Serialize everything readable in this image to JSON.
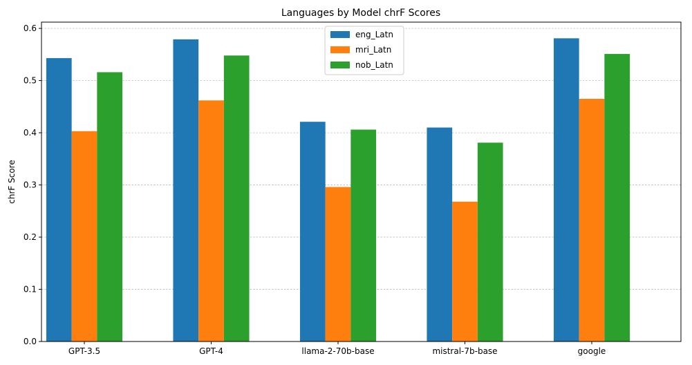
{
  "chart_data": {
    "type": "bar",
    "title": "Languages by Model chrF Scores",
    "xlabel": "",
    "ylabel": "chrF Score",
    "categories": [
      "GPT-3.5",
      "GPT-4",
      "llama-2-70b-base",
      "mistral-7b-base",
      "google"
    ],
    "series": [
      {
        "name": "eng_Latn",
        "color": "#1f77b4",
        "values": [
          0.543,
          0.579,
          0.421,
          0.41,
          0.581
        ]
      },
      {
        "name": "mri_Latn",
        "color": "#ff7f0e",
        "values": [
          0.403,
          0.462,
          0.296,
          0.268,
          0.465
        ]
      },
      {
        "name": "nob_Latn",
        "color": "#2ca02c",
        "values": [
          0.516,
          0.548,
          0.406,
          0.381,
          0.551
        ]
      }
    ],
    "ylim": [
      0,
      0.612
    ],
    "yticks": [
      0.0,
      0.1,
      0.2,
      0.3,
      0.4,
      0.5,
      0.6
    ],
    "ytick_labels": [
      "0.0",
      "0.1",
      "0.2",
      "0.3",
      "0.4",
      "0.5",
      "0.6"
    ],
    "grid": "y-dashed",
    "legend_position": "top-center"
  }
}
